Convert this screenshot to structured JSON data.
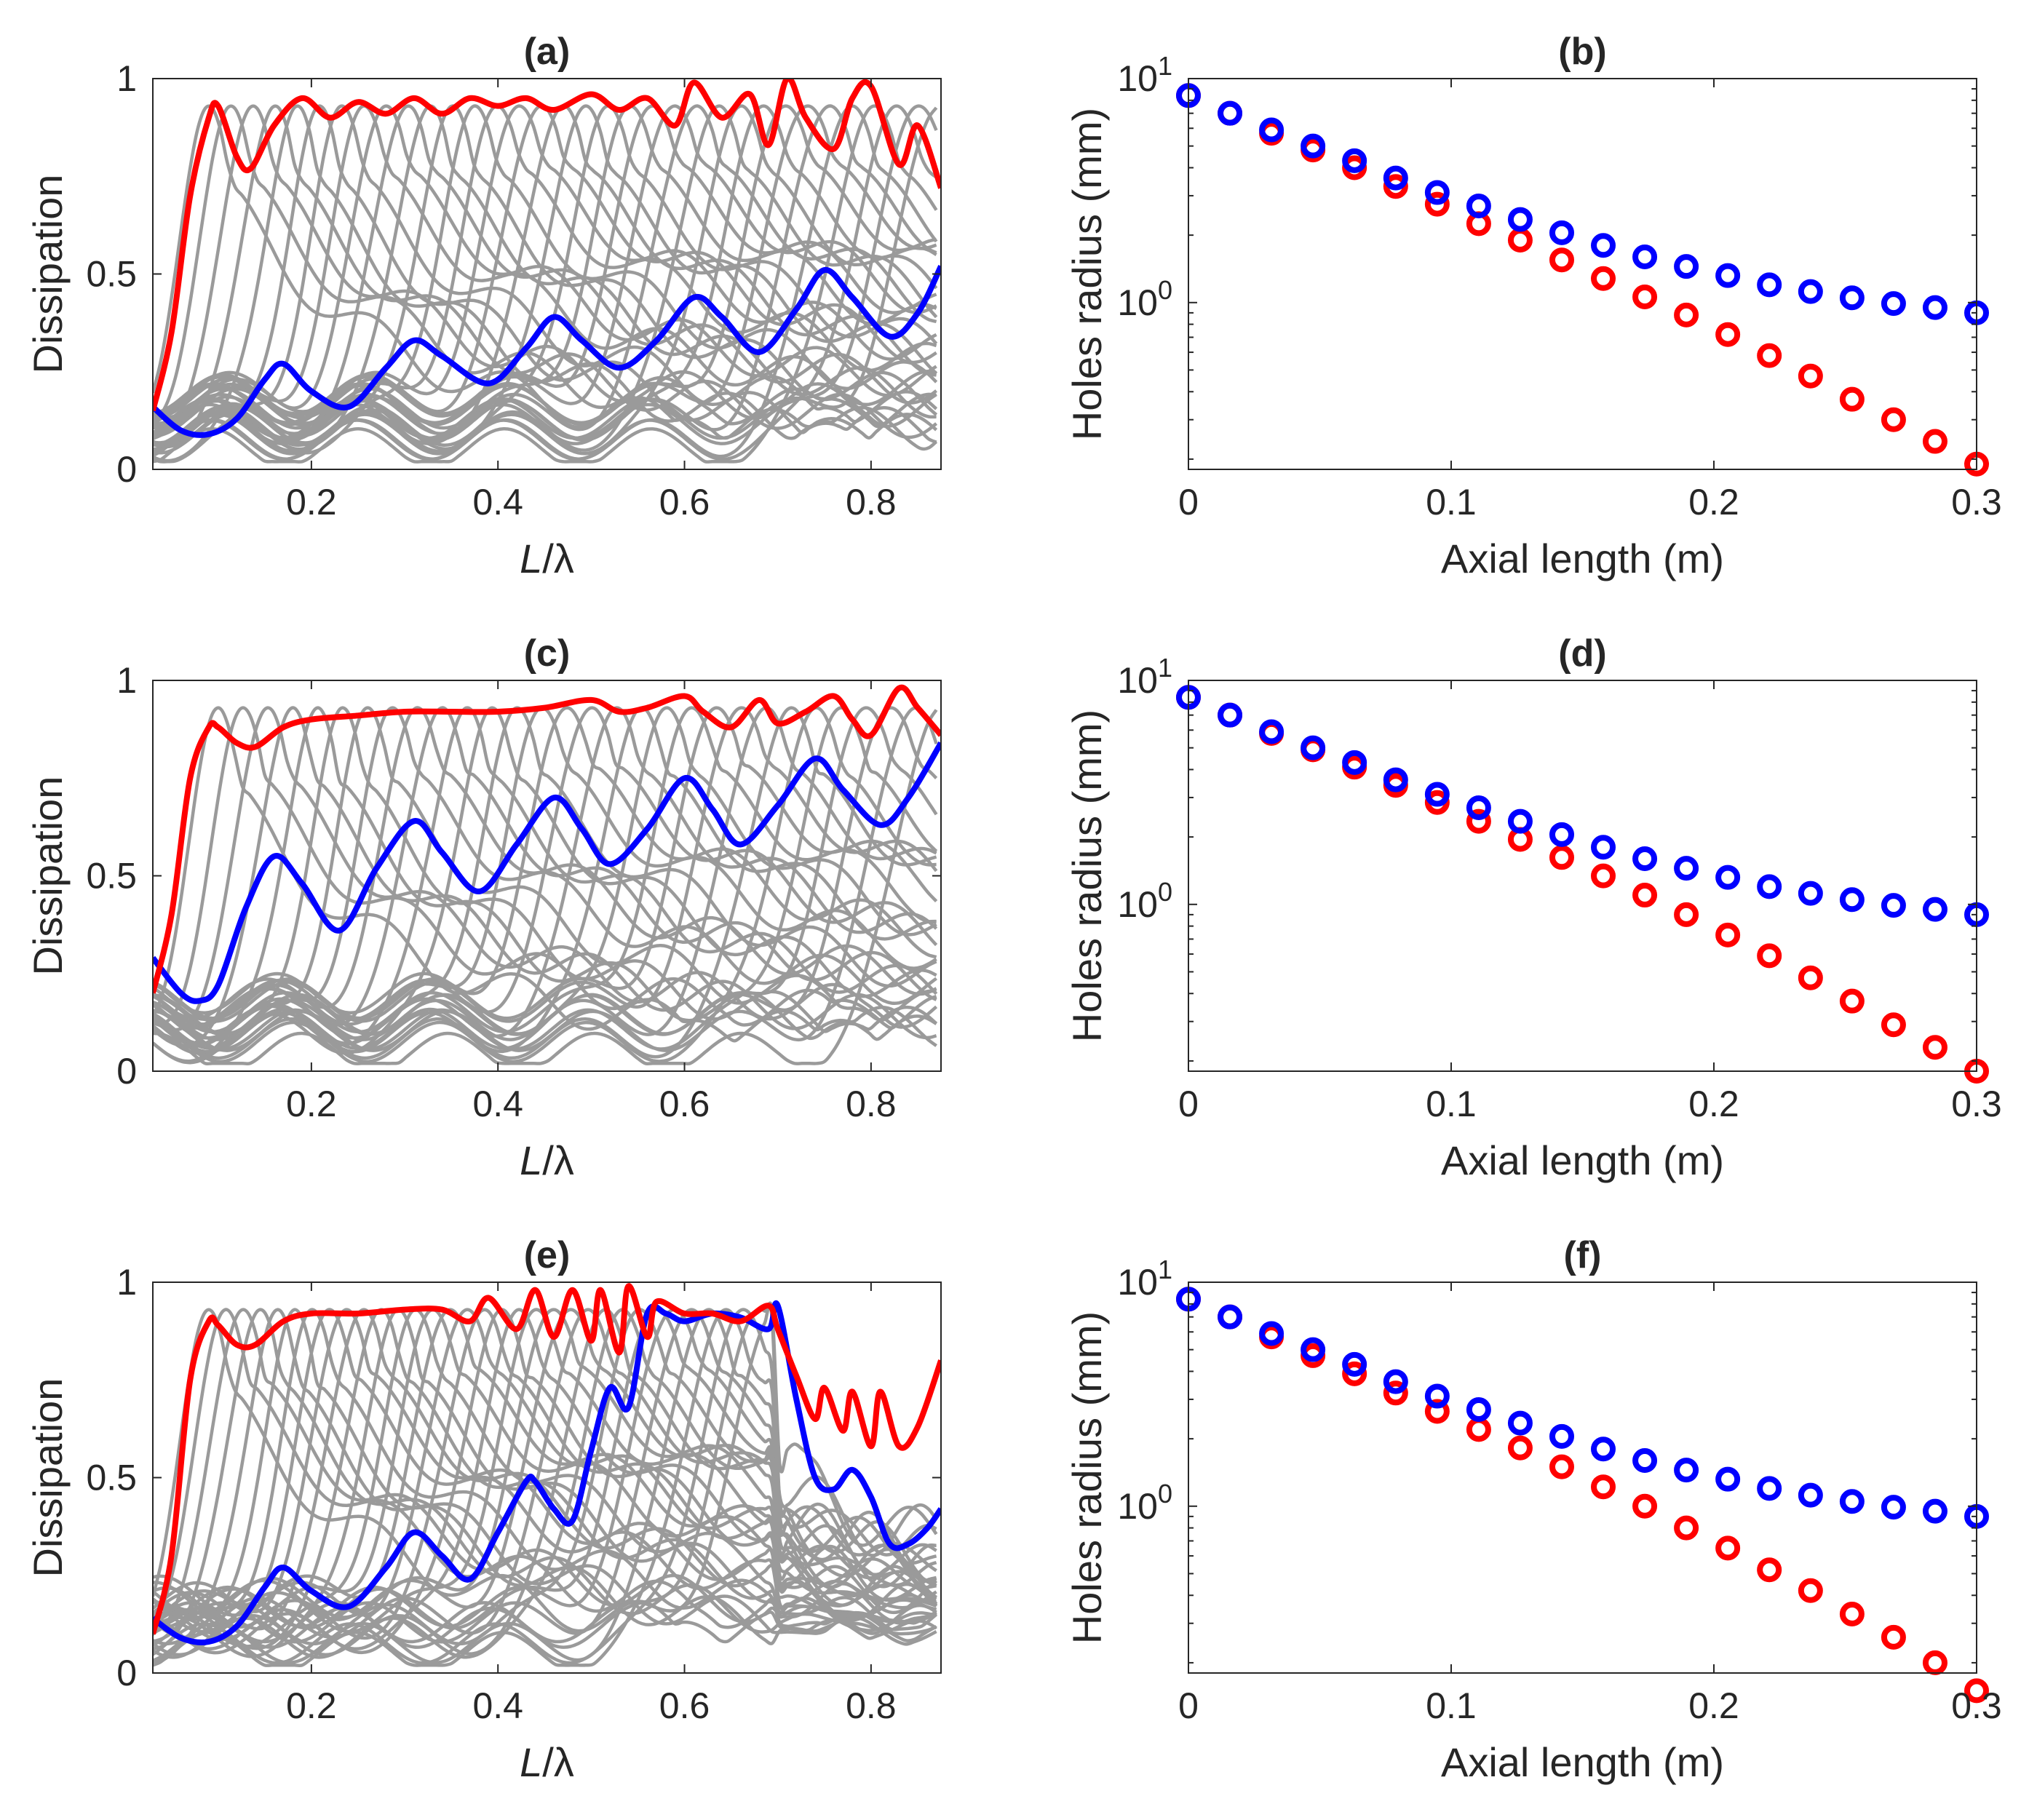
{
  "colors": {
    "gray": "#9a9a9a",
    "red": "#ff0000",
    "blue": "#0000ff",
    "axis": "#262626"
  },
  "chart_data": [
    {
      "panel": "(a)",
      "type": "line",
      "title": "(a)",
      "xlabel_italic": "L",
      "xlabel_rest": "/λ",
      "ylabel": "Dissipation",
      "xlim": [
        0.03,
        0.875
      ],
      "ylim": [
        0,
        1
      ],
      "xticks": [
        "0.2",
        "0.4",
        "0.6",
        "0.8"
      ],
      "xtick_values": [
        0.2,
        0.4,
        0.6,
        0.8
      ],
      "yticks": [
        "0",
        "0.5",
        "1"
      ],
      "ytick_values": [
        0,
        0.5,
        1
      ],
      "gray_curves": {
        "count": 34,
        "description": "family of dissipation curves",
        "peak_x_range": [
          0.09,
          0.875
        ]
      },
      "series": [
        {
          "name": "red",
          "x": [
            0.03,
            0.05,
            0.07,
            0.09,
            0.1,
            0.12,
            0.135,
            0.16,
            0.19,
            0.22,
            0.25,
            0.28,
            0.31,
            0.34,
            0.37,
            0.4,
            0.43,
            0.46,
            0.5,
            0.53,
            0.56,
            0.59,
            0.61,
            0.64,
            0.67,
            0.69,
            0.71,
            0.73,
            0.76,
            0.78,
            0.8,
            0.83,
            0.85,
            0.875
          ],
          "y": [
            0.15,
            0.35,
            0.7,
            0.9,
            0.93,
            0.8,
            0.77,
            0.88,
            0.95,
            0.9,
            0.94,
            0.91,
            0.95,
            0.91,
            0.95,
            0.93,
            0.95,
            0.92,
            0.96,
            0.92,
            0.95,
            0.88,
            0.99,
            0.9,
            0.96,
            0.83,
            1.0,
            0.9,
            0.82,
            0.95,
            0.98,
            0.78,
            0.88,
            0.72
          ]
        },
        {
          "name": "blue",
          "x": [
            0.03,
            0.06,
            0.09,
            0.12,
            0.15,
            0.17,
            0.2,
            0.24,
            0.28,
            0.31,
            0.34,
            0.39,
            0.43,
            0.46,
            0.49,
            0.53,
            0.57,
            0.61,
            0.64,
            0.68,
            0.72,
            0.75,
            0.78,
            0.82,
            0.85,
            0.875
          ],
          "y": [
            0.16,
            0.1,
            0.09,
            0.13,
            0.23,
            0.27,
            0.2,
            0.16,
            0.26,
            0.33,
            0.29,
            0.22,
            0.31,
            0.39,
            0.33,
            0.26,
            0.33,
            0.44,
            0.39,
            0.3,
            0.41,
            0.51,
            0.44,
            0.34,
            0.4,
            0.52
          ]
        }
      ]
    },
    {
      "panel": "(b)",
      "type": "scatter",
      "title": "(b)",
      "xlabel": "Axial length (m)",
      "ylabel": "Holes radius (mm)",
      "yscale": "log",
      "xlim": [
        0,
        0.3
      ],
      "ylim": [
        0.18,
        10
      ],
      "xticks": [
        "0",
        "0.1",
        "0.2",
        "0.3"
      ],
      "xtick_values": [
        0,
        0.1,
        0.2,
        0.3
      ],
      "yticks": [
        {
          "base": "10",
          "exp": "1",
          "value": 10
        },
        {
          "base": "10",
          "exp": "0",
          "value": 1
        }
      ],
      "x": [
        0,
        0.0158,
        0.0316,
        0.0474,
        0.0632,
        0.0789,
        0.0947,
        0.1105,
        0.1263,
        0.1421,
        0.1579,
        0.1737,
        0.1895,
        0.2053,
        0.2211,
        0.2368,
        0.2526,
        0.2684,
        0.2842,
        0.3
      ],
      "series": [
        {
          "name": "blue",
          "values": [
            8.4,
            7.0,
            5.9,
            5.0,
            4.3,
            3.6,
            3.1,
            2.7,
            2.35,
            2.05,
            1.8,
            1.6,
            1.45,
            1.32,
            1.2,
            1.12,
            1.05,
            0.99,
            0.95,
            0.9
          ]
        },
        {
          "name": "red",
          "values": [
            8.4,
            7.0,
            5.7,
            4.8,
            4.0,
            3.3,
            2.75,
            2.25,
            1.9,
            1.55,
            1.28,
            1.06,
            0.88,
            0.72,
            0.58,
            0.47,
            0.37,
            0.3,
            0.24,
            0.19
          ]
        }
      ]
    },
    {
      "panel": "(c)",
      "type": "line",
      "title": "(c)",
      "xlabel_italic": "L",
      "xlabel_rest": "/λ",
      "ylabel": "Dissipation",
      "xlim": [
        0.03,
        0.875
      ],
      "ylim": [
        0,
        1
      ],
      "xticks": [
        "0.2",
        "0.4",
        "0.6",
        "0.8"
      ],
      "xtick_values": [
        0.2,
        0.4,
        0.6,
        0.8
      ],
      "yticks": [
        "0",
        "0.5",
        "1"
      ],
      "ytick_values": [
        0,
        0.5,
        1
      ],
      "gray_curves": {
        "count": 30,
        "description": "family of dissipation curves",
        "peak_x_range": [
          0.1,
          0.875
        ]
      },
      "series": [
        {
          "name": "red",
          "x": [
            0.03,
            0.05,
            0.07,
            0.09,
            0.1,
            0.12,
            0.14,
            0.17,
            0.2,
            0.25,
            0.3,
            0.35,
            0.4,
            0.45,
            0.5,
            0.53,
            0.56,
            0.6,
            0.62,
            0.65,
            0.68,
            0.7,
            0.73,
            0.76,
            0.78,
            0.8,
            0.83,
            0.85,
            0.875
          ],
          "y": [
            0.2,
            0.4,
            0.75,
            0.88,
            0.88,
            0.84,
            0.83,
            0.88,
            0.9,
            0.91,
            0.92,
            0.92,
            0.92,
            0.93,
            0.95,
            0.92,
            0.93,
            0.96,
            0.92,
            0.88,
            0.95,
            0.89,
            0.92,
            0.96,
            0.9,
            0.86,
            0.98,
            0.93,
            0.86
          ]
        },
        {
          "name": "blue",
          "x": [
            0.03,
            0.06,
            0.08,
            0.1,
            0.13,
            0.16,
            0.19,
            0.23,
            0.27,
            0.31,
            0.34,
            0.38,
            0.42,
            0.46,
            0.49,
            0.52,
            0.56,
            0.6,
            0.63,
            0.66,
            0.7,
            0.74,
            0.77,
            0.81,
            0.84,
            0.875
          ],
          "y": [
            0.29,
            0.2,
            0.18,
            0.22,
            0.42,
            0.55,
            0.48,
            0.36,
            0.52,
            0.64,
            0.56,
            0.46,
            0.58,
            0.7,
            0.62,
            0.53,
            0.62,
            0.75,
            0.67,
            0.58,
            0.68,
            0.8,
            0.72,
            0.63,
            0.7,
            0.84
          ]
        }
      ]
    },
    {
      "panel": "(d)",
      "type": "scatter",
      "title": "(d)",
      "xlabel": "Axial length (m)",
      "ylabel": "Holes radius (mm)",
      "yscale": "log",
      "xlim": [
        0,
        0.3
      ],
      "ylim": [
        0.18,
        10
      ],
      "xticks": [
        "0",
        "0.1",
        "0.2",
        "0.3"
      ],
      "xtick_values": [
        0,
        0.1,
        0.2,
        0.3
      ],
      "yticks": [
        {
          "base": "10",
          "exp": "1",
          "value": 10
        },
        {
          "base": "10",
          "exp": "0",
          "value": 1
        }
      ],
      "x": [
        0,
        0.0158,
        0.0316,
        0.0474,
        0.0632,
        0.0789,
        0.0947,
        0.1105,
        0.1263,
        0.1421,
        0.1579,
        0.1737,
        0.1895,
        0.2053,
        0.2211,
        0.2368,
        0.2526,
        0.2684,
        0.2842,
        0.3
      ],
      "series": [
        {
          "name": "blue",
          "values": [
            8.4,
            7.0,
            5.9,
            5.0,
            4.3,
            3.6,
            3.1,
            2.7,
            2.35,
            2.05,
            1.8,
            1.6,
            1.45,
            1.32,
            1.2,
            1.12,
            1.05,
            0.99,
            0.95,
            0.9
          ]
        },
        {
          "name": "red",
          "values": [
            8.4,
            7.0,
            5.8,
            4.9,
            4.1,
            3.4,
            2.85,
            2.35,
            1.95,
            1.62,
            1.34,
            1.1,
            0.9,
            0.73,
            0.59,
            0.47,
            0.37,
            0.29,
            0.23,
            0.18
          ]
        }
      ]
    },
    {
      "panel": "(e)",
      "type": "line",
      "title": "(e)",
      "xlabel_italic": "L",
      "xlabel_rest": "/λ",
      "ylabel": "Dissipation",
      "xlim": [
        0.03,
        0.875
      ],
      "ylim": [
        0,
        1
      ],
      "xticks": [
        "0.2",
        "0.4",
        "0.6",
        "0.8"
      ],
      "xtick_values": [
        0.2,
        0.4,
        0.6,
        0.8
      ],
      "yticks": [
        "0",
        "0.5",
        "1"
      ],
      "ytick_values": [
        0,
        0.5,
        1
      ],
      "gray_curves": {
        "count": 34,
        "description": "family of dissipation curves",
        "peak_x_range": [
          0.09,
          0.7
        ]
      },
      "series": [
        {
          "name": "red",
          "x": [
            0.03,
            0.05,
            0.07,
            0.09,
            0.1,
            0.12,
            0.14,
            0.17,
            0.2,
            0.25,
            0.3,
            0.34,
            0.37,
            0.39,
            0.42,
            0.44,
            0.46,
            0.48,
            0.5,
            0.51,
            0.53,
            0.54,
            0.56,
            0.57,
            0.6,
            0.63,
            0.66,
            0.69,
            0.7,
            0.72,
            0.74,
            0.75,
            0.77,
            0.78,
            0.8,
            0.81,
            0.83,
            0.85,
            0.875
          ],
          "y": [
            0.1,
            0.3,
            0.75,
            0.9,
            0.89,
            0.84,
            0.84,
            0.9,
            0.92,
            0.92,
            0.93,
            0.93,
            0.9,
            0.96,
            0.88,
            0.98,
            0.86,
            0.98,
            0.85,
            0.98,
            0.82,
            0.99,
            0.86,
            0.95,
            0.92,
            0.92,
            0.9,
            0.94,
            0.88,
            0.76,
            0.65,
            0.73,
            0.62,
            0.72,
            0.58,
            0.72,
            0.58,
            0.63,
            0.8
          ]
        },
        {
          "name": "blue",
          "x": [
            0.03,
            0.06,
            0.09,
            0.12,
            0.15,
            0.17,
            0.2,
            0.24,
            0.28,
            0.31,
            0.34,
            0.37,
            0.4,
            0.43,
            0.44,
            0.46,
            0.48,
            0.5,
            0.52,
            0.54,
            0.56,
            0.58,
            0.6,
            0.63,
            0.66,
            0.69,
            0.7,
            0.72,
            0.74,
            0.76,
            0.78,
            0.8,
            0.82,
            0.84,
            0.86,
            0.875
          ],
          "y": [
            0.14,
            0.09,
            0.08,
            0.12,
            0.22,
            0.27,
            0.21,
            0.17,
            0.27,
            0.36,
            0.3,
            0.24,
            0.36,
            0.49,
            0.49,
            0.42,
            0.39,
            0.57,
            0.73,
            0.68,
            0.92,
            0.92,
            0.9,
            0.92,
            0.91,
            0.88,
            0.94,
            0.7,
            0.5,
            0.47,
            0.52,
            0.45,
            0.33,
            0.33,
            0.37,
            0.42
          ]
        }
      ]
    },
    {
      "panel": "(f)",
      "type": "scatter",
      "title": "(f)",
      "xlabel": "Axial length (m)",
      "ylabel": "Holes radius (mm)",
      "yscale": "log",
      "xlim": [
        0,
        0.3
      ],
      "ylim": [
        0.18,
        10
      ],
      "xticks": [
        "0",
        "0.1",
        "0.2",
        "0.3"
      ],
      "xtick_values": [
        0,
        0.1,
        0.2,
        0.3
      ],
      "yticks": [
        {
          "base": "10",
          "exp": "1",
          "value": 10
        },
        {
          "base": "10",
          "exp": "0",
          "value": 1
        }
      ],
      "x": [
        0,
        0.0158,
        0.0316,
        0.0474,
        0.0632,
        0.0789,
        0.0947,
        0.1105,
        0.1263,
        0.1421,
        0.1579,
        0.1737,
        0.1895,
        0.2053,
        0.2211,
        0.2368,
        0.2526,
        0.2684,
        0.2842,
        0.3
      ],
      "series": [
        {
          "name": "blue",
          "values": [
            8.4,
            7.0,
            5.9,
            5.0,
            4.3,
            3.6,
            3.1,
            2.7,
            2.35,
            2.05,
            1.8,
            1.6,
            1.45,
            1.32,
            1.2,
            1.12,
            1.05,
            0.99,
            0.95,
            0.9
          ]
        },
        {
          "name": "red",
          "values": [
            8.4,
            7.0,
            5.7,
            4.7,
            3.9,
            3.2,
            2.65,
            2.2,
            1.82,
            1.5,
            1.22,
            1.0,
            0.8,
            0.65,
            0.52,
            0.42,
            0.33,
            0.26,
            0.2,
            0.15
          ]
        }
      ]
    }
  ]
}
